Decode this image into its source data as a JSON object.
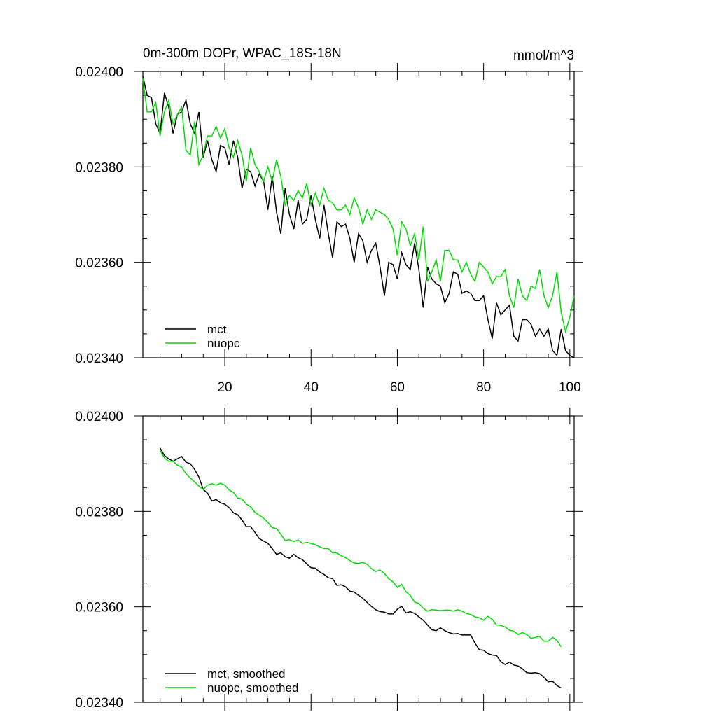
{
  "chart_data": [
    {
      "type": "line",
      "title_left": "0m-300m DOPr, WPAC_18S-18N",
      "title_right": "mmol/m^3",
      "xlim": [
        1,
        101
      ],
      "ylim": [
        0.0234,
        0.024
      ],
      "x_ticks": [
        20,
        40,
        60,
        80,
        100
      ],
      "x_tick_labels": [
        "20",
        "40",
        "60",
        "80",
        "100"
      ],
      "y_ticks": [
        0.024,
        0.0238,
        0.0236,
        0.0234
      ],
      "y_tick_labels": [
        "0.02400",
        "0.02380",
        "0.02360",
        "0.02340"
      ],
      "legend_position": "bottom-left",
      "series": [
        {
          "name": "mct",
          "color": "#000000",
          "x": [
            1,
            2,
            3,
            4,
            5,
            6,
            7,
            8,
            9,
            10,
            11,
            12,
            13,
            14,
            15,
            16,
            17,
            18,
            19,
            20,
            21,
            22,
            23,
            24,
            25,
            26,
            27,
            28,
            29,
            30,
            31,
            32,
            33,
            34,
            35,
            36,
            37,
            38,
            39,
            40,
            41,
            42,
            43,
            44,
            45,
            46,
            47,
            48,
            49,
            50,
            51,
            52,
            53,
            54,
            55,
            56,
            57,
            58,
            59,
            60,
            61,
            62,
            63,
            64,
            65,
            66,
            67,
            68,
            69,
            70,
            71,
            72,
            73,
            74,
            75,
            76,
            77,
            78,
            79,
            80,
            81,
            82,
            83,
            84,
            85,
            86,
            87,
            88,
            89,
            90,
            91,
            92,
            93,
            94,
            95,
            96,
            97,
            98,
            99,
            100,
            101
          ],
          "values": [
            0.02399,
            0.02395,
            0.023945,
            0.02389,
            0.02387,
            0.023955,
            0.023925,
            0.02387,
            0.02391,
            0.023915,
            0.02394,
            0.02389,
            0.02387,
            0.023915,
            0.02382,
            0.023855,
            0.023815,
            0.02379,
            0.023845,
            0.02384,
            0.023805,
            0.023855,
            0.02382,
            0.023755,
            0.023795,
            0.02379,
            0.02376,
            0.023785,
            0.02377,
            0.02371,
            0.02378,
            0.023705,
            0.02366,
            0.023755,
            0.0237,
            0.02367,
            0.02373,
            0.02368,
            0.02369,
            0.02374,
            0.02369,
            0.02365,
            0.02372,
            0.02366,
            0.02361,
            0.023685,
            0.023675,
            0.02368,
            0.02365,
            0.0236,
            0.02366,
            0.023645,
            0.0236,
            0.023625,
            0.02364,
            0.02359,
            0.02353,
            0.0236,
            0.023595,
            0.023565,
            0.02362,
            0.023595,
            0.023585,
            0.02364,
            0.023585,
            0.023505,
            0.02359,
            0.023565,
            0.023555,
            0.02355,
            0.023515,
            0.023535,
            0.02358,
            0.023575,
            0.023535,
            0.02354,
            0.023535,
            0.02352,
            0.02352,
            0.02353,
            0.02348,
            0.02344,
            0.023515,
            0.02349,
            0.0235,
            0.02351,
            0.023445,
            0.023435,
            0.02348,
            0.02348,
            0.02347,
            0.023445,
            0.02346,
            0.023445,
            0.02346,
            0.023415,
            0.023405,
            0.02346,
            0.023415,
            0.023405,
            0.0234
          ]
        },
        {
          "name": "nuopc",
          "color": "#00dd00",
          "x": [
            1,
            2,
            3,
            4,
            5,
            6,
            7,
            8,
            9,
            10,
            11,
            12,
            13,
            14,
            15,
            16,
            17,
            18,
            19,
            20,
            21,
            22,
            23,
            24,
            25,
            26,
            27,
            28,
            29,
            30,
            31,
            32,
            33,
            34,
            35,
            36,
            37,
            38,
            39,
            40,
            41,
            42,
            43,
            44,
            45,
            46,
            47,
            48,
            49,
            50,
            51,
            52,
            53,
            54,
            55,
            56,
            57,
            58,
            59,
            60,
            61,
            62,
            63,
            64,
            65,
            66,
            67,
            68,
            69,
            70,
            71,
            72,
            73,
            74,
            75,
            76,
            77,
            78,
            79,
            80,
            81,
            82,
            83,
            84,
            85,
            86,
            87,
            88,
            89,
            90,
            91,
            92,
            93,
            94,
            95,
            96,
            97,
            98,
            99,
            100,
            101
          ],
          "values": [
            0.023985,
            0.023915,
            0.023915,
            0.023935,
            0.023865,
            0.023915,
            0.02394,
            0.02389,
            0.02391,
            0.023925,
            0.023835,
            0.023825,
            0.023895,
            0.023805,
            0.023825,
            0.023865,
            0.023865,
            0.023885,
            0.02386,
            0.02388,
            0.02384,
            0.02382,
            0.023855,
            0.023825,
            0.02377,
            0.02384,
            0.023805,
            0.02379,
            0.02377,
            0.0238,
            0.02377,
            0.023815,
            0.02378,
            0.02372,
            0.02374,
            0.02373,
            0.02375,
            0.023735,
            0.023765,
            0.02372,
            0.023745,
            0.02372,
            0.023755,
            0.02373,
            0.023725,
            0.02371,
            0.02371,
            0.02372,
            0.0237,
            0.023735,
            0.023715,
            0.02368,
            0.02371,
            0.02369,
            0.02371,
            0.023705,
            0.0237,
            0.02369,
            0.02367,
            0.023615,
            0.023685,
            0.02367,
            0.023635,
            0.02366,
            0.023605,
            0.023675,
            0.02356,
            0.02358,
            0.023605,
            0.02356,
            0.023625,
            0.023625,
            0.023605,
            0.023605,
            0.02358,
            0.0236,
            0.023575,
            0.02356,
            0.0236,
            0.02359,
            0.02358,
            0.023555,
            0.02357,
            0.02357,
            0.023585,
            0.02353,
            0.023505,
            0.023565,
            0.02353,
            0.02352,
            0.02355,
            0.023545,
            0.023585,
            0.02353,
            0.023505,
            0.02353,
            0.02358,
            0.023495,
            0.023455,
            0.023485,
            0.02353
          ]
        }
      ]
    },
    {
      "type": "line",
      "xlim": [
        1,
        101
      ],
      "ylim": [
        0.0234,
        0.024
      ],
      "x_ticks": [
        20,
        40,
        60,
        80,
        100
      ],
      "y_ticks": [
        0.024,
        0.0238,
        0.0236,
        0.0234
      ],
      "y_tick_labels": [
        "0.02400",
        "0.02380",
        "0.02360",
        "0.02340"
      ],
      "legend_position": "bottom-left",
      "series": [
        {
          "name": "mct, smoothed",
          "color": "#000000",
          "x": [
            5,
            6,
            7,
            8,
            9,
            10,
            11,
            12,
            13,
            14,
            15,
            16,
            17,
            18,
            19,
            20,
            21,
            22,
            23,
            24,
            25,
            26,
            27,
            28,
            29,
            30,
            31,
            32,
            33,
            34,
            35,
            36,
            37,
            38,
            39,
            40,
            41,
            42,
            43,
            44,
            45,
            46,
            47,
            48,
            49,
            50,
            51,
            52,
            53,
            54,
            55,
            56,
            57,
            58,
            59,
            60,
            61,
            62,
            63,
            64,
            65,
            66,
            67,
            68,
            69,
            70,
            71,
            72,
            73,
            74,
            75,
            76,
            77,
            78,
            79,
            80,
            81,
            82,
            83,
            84,
            85,
            86,
            87,
            88,
            89,
            90,
            91,
            92,
            93,
            94,
            95,
            96,
            97,
            98
          ],
          "values": [
            0.023933,
            0.023917,
            0.02391,
            0.023905,
            0.02391,
            0.023915,
            0.023903,
            0.0239,
            0.023888,
            0.023872,
            0.023846,
            0.023838,
            0.023822,
            0.023825,
            0.023818,
            0.023815,
            0.023808,
            0.023797,
            0.023793,
            0.023782,
            0.023768,
            0.023768,
            0.023756,
            0.023743,
            0.023738,
            0.023733,
            0.023722,
            0.02371,
            0.023713,
            0.023705,
            0.023702,
            0.02371,
            0.023703,
            0.023699,
            0.02369,
            0.023682,
            0.023681,
            0.023673,
            0.023668,
            0.023661,
            0.023659,
            0.023645,
            0.023646,
            0.023642,
            0.023633,
            0.023631,
            0.023624,
            0.023618,
            0.023609,
            0.023601,
            0.023594,
            0.02359,
            0.023589,
            0.023585,
            0.023585,
            0.023595,
            0.023601,
            0.023587,
            0.02359,
            0.023586,
            0.023579,
            0.023572,
            0.023562,
            0.023552,
            0.02355,
            0.023556,
            0.02355,
            0.023546,
            0.023543,
            0.023544,
            0.023541,
            0.023541,
            0.023541,
            0.023524,
            0.02351,
            0.023509,
            0.023502,
            0.023499,
            0.023498,
            0.023485,
            0.023479,
            0.023484,
            0.023478,
            0.023476,
            0.02347,
            0.023462,
            0.023461,
            0.023462,
            0.02346,
            0.023452,
            0.023443,
            0.023444,
            0.023435,
            0.02343
          ]
        },
        {
          "name": "nuopc, smoothed",
          "color": "#00dd00",
          "x": [
            5,
            6,
            7,
            8,
            9,
            10,
            11,
            12,
            13,
            14,
            15,
            16,
            17,
            18,
            19,
            20,
            21,
            22,
            23,
            24,
            25,
            26,
            27,
            28,
            29,
            30,
            31,
            32,
            33,
            34,
            35,
            36,
            37,
            38,
            39,
            40,
            41,
            42,
            43,
            44,
            45,
            46,
            47,
            48,
            49,
            50,
            51,
            52,
            53,
            54,
            55,
            56,
            57,
            58,
            59,
            60,
            61,
            62,
            63,
            64,
            65,
            66,
            67,
            68,
            69,
            70,
            71,
            72,
            73,
            74,
            75,
            76,
            77,
            78,
            79,
            80,
            81,
            82,
            83,
            84,
            85,
            86,
            87,
            88,
            89,
            90,
            91,
            92,
            93,
            94,
            95,
            96,
            97,
            98
          ],
          "values": [
            0.023928,
            0.023912,
            0.023905,
            0.023905,
            0.023897,
            0.023893,
            0.023879,
            0.02387,
            0.023862,
            0.023853,
            0.023846,
            0.023855,
            0.023858,
            0.023855,
            0.023859,
            0.023855,
            0.023845,
            0.02384,
            0.023828,
            0.023826,
            0.023815,
            0.02381,
            0.023798,
            0.023792,
            0.023786,
            0.023777,
            0.023766,
            0.023764,
            0.023752,
            0.023739,
            0.023741,
            0.023737,
            0.02374,
            0.023733,
            0.023735,
            0.023733,
            0.02373,
            0.023726,
            0.023722,
            0.023722,
            0.023713,
            0.023713,
            0.023707,
            0.023703,
            0.023697,
            0.023692,
            0.023691,
            0.023693,
            0.023689,
            0.02368,
            0.023674,
            0.023677,
            0.02367,
            0.023659,
            0.023652,
            0.023641,
            0.023647,
            0.023632,
            0.023624,
            0.02361,
            0.023607,
            0.023597,
            0.023591,
            0.023594,
            0.023593,
            0.023592,
            0.023593,
            0.023593,
            0.023591,
            0.023594,
            0.023591,
            0.023586,
            0.023584,
            0.023579,
            0.023577,
            0.023572,
            0.02358,
            0.023574,
            0.023562,
            0.023561,
            0.023558,
            0.023551,
            0.023549,
            0.023542,
            0.023546,
            0.023542,
            0.023534,
            0.023536,
            0.023538,
            0.023528,
            0.023528,
            0.023536,
            0.02353,
            0.023516
          ]
        }
      ]
    }
  ]
}
